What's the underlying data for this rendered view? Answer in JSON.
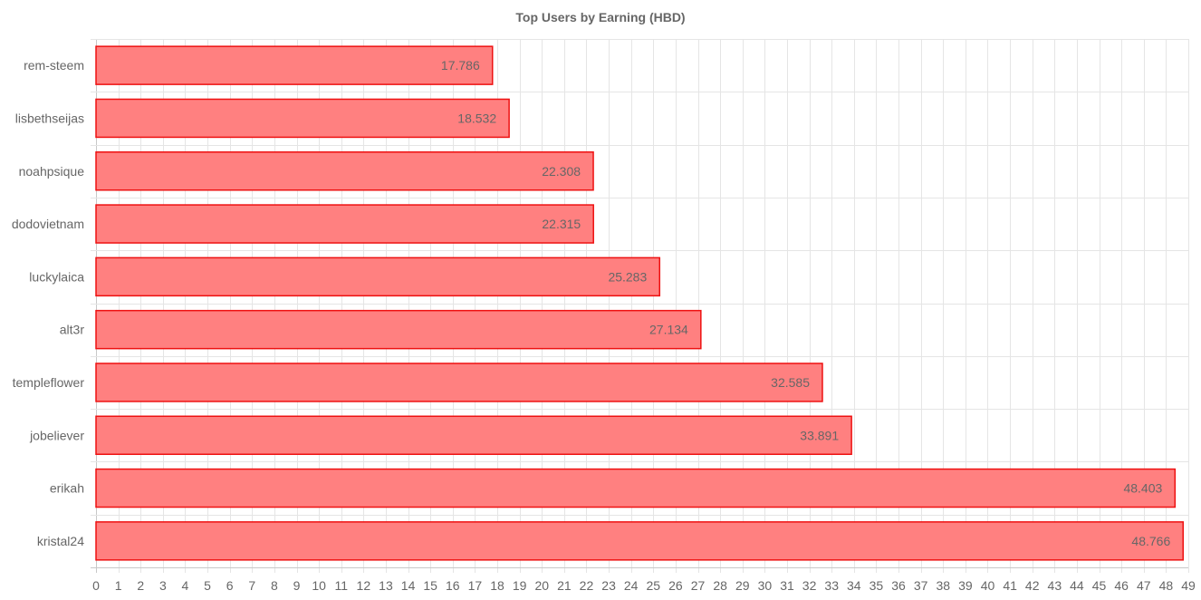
{
  "chart_data": {
    "type": "bar",
    "orientation": "horizontal",
    "title": "Top Users by Earning (HBD)",
    "categories": [
      "rem-steem",
      "lisbethseijas",
      "noahpsique",
      "dodovietnam",
      "luckylaica",
      "alt3r",
      "templeflower",
      "jobeliever",
      "erikah",
      "kristal24"
    ],
    "values": [
      17.786,
      18.532,
      22.308,
      22.315,
      25.283,
      27.134,
      32.585,
      33.891,
      48.403,
      48.766
    ],
    "value_labels": [
      "17.786",
      "18.532",
      "22.308",
      "22.315",
      "25.283",
      "27.134",
      "32.585",
      "33.891",
      "48.403",
      "48.766"
    ],
    "xlim": [
      0,
      49
    ],
    "xtick_step": 1,
    "grid": true,
    "colors": {
      "bar_fill": "#ff8080",
      "bar_stroke": "#ee1111",
      "grid": "#e5e5e5",
      "axis": "#c8c8c8",
      "text": "#666666"
    }
  }
}
